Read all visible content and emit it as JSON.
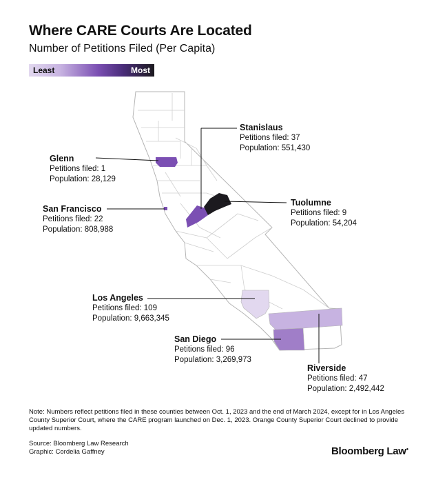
{
  "header": {
    "title": "Where CARE Courts Are Located",
    "subtitle": "Number of Petitions Filed (Per Capita)"
  },
  "legend": {
    "least": "Least",
    "most": "Most"
  },
  "colors": {
    "lightest": "#e2d8ef",
    "light": "#c7b3e1",
    "medium": "#a07ec8",
    "purple": "#7b4fb3",
    "dark": "#1c1a1f",
    "outline": "#b5b5b5"
  },
  "counties": [
    {
      "name": "Glenn",
      "petitions_label": "Petitions filed: 1",
      "population_label": "Population: 28,129",
      "shade": "purple"
    },
    {
      "name": "Stanislaus",
      "petitions_label": "Petitions filed: 37",
      "population_label": "Population: 551,430",
      "shade": "purple"
    },
    {
      "name": "San Francisco",
      "petitions_label": "Petitions filed: 22",
      "population_label": "Population: 808,988",
      "shade": "purple"
    },
    {
      "name": "Tuolumne",
      "petitions_label": "Petitions filed: 9",
      "population_label": "Population: 54,204",
      "shade": "dark"
    },
    {
      "name": "Los Angeles",
      "petitions_label": "Petitions filed: 109",
      "population_label": "Population: 9,663,345",
      "shade": "lightest"
    },
    {
      "name": "San Diego",
      "petitions_label": "Petitions filed: 96",
      "population_label": "Population: 3,269,973",
      "shade": "medium"
    },
    {
      "name": "Riverside",
      "petitions_label": "Petitions filed: 47",
      "population_label": "Population: 2,492,442",
      "shade": "light"
    }
  ],
  "footer": {
    "note": "Note: Numbers reflect petitions filed in these counties between Oct. 1, 2023 and the end of March 2024, except for in Los Angeles County Superior Court, where the CARE program launched on Dec. 1, 2023. Orange County Superior Court declined to provide updated numbers.",
    "source": "Source: Bloomberg Law Research",
    "graphic": "Graphic: Cordelia Gaffney",
    "brand": "Bloomberg Law"
  }
}
